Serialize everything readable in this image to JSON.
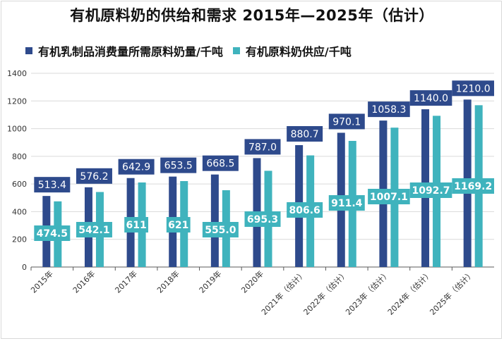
{
  "colors": {
    "demand": "#2e4a8c",
    "supply": "#3fb3bd",
    "grid": "#d9d9d9",
    "axis": "#595959",
    "label_text": "#ffffff"
  },
  "chart_data": {
    "type": "bar",
    "title": "有机原料奶的供给和需求 2015年—2025年（估计）",
    "categories": [
      "2015年",
      "2016年",
      "2017年",
      "2018年",
      "2019年",
      "2020年",
      "2021年（估计）",
      "2022年（估计）",
      "2023年（估计）",
      "2024年（估计）",
      "2025年（估计）"
    ],
    "series": [
      {
        "name": "有机乳制品消费量所需原料奶量/千吨",
        "values": [
          513.4,
          576.2,
          642.9,
          653.5,
          668.5,
          787.0,
          880.7,
          970.1,
          1058.3,
          1140.0,
          1210.0
        ],
        "labels": [
          "513.4",
          "576.2",
          "642.9",
          "653.5",
          "668.5",
          "787.0",
          "880.7",
          "970.1",
          "1058.3",
          "1140.0",
          "1210.0"
        ]
      },
      {
        "name": "有机原料奶供应/千吨",
        "values": [
          474.5,
          542.1,
          611,
          621,
          555.0,
          695.3,
          806.6,
          911.4,
          1007.1,
          1092.7,
          1169.2
        ],
        "labels": [
          "474.5",
          "542.1",
          "611",
          "621",
          "555.0",
          "695.3",
          "806.6",
          "911.4",
          "1007.1",
          "1092.7",
          "1169.2"
        ]
      }
    ],
    "y_ticks": [
      "0",
      "200",
      "400",
      "600",
      "800",
      "1000",
      "1200",
      "1400"
    ],
    "ylim": [
      0,
      1400
    ],
    "grid": true,
    "legend_position": "top-left"
  }
}
